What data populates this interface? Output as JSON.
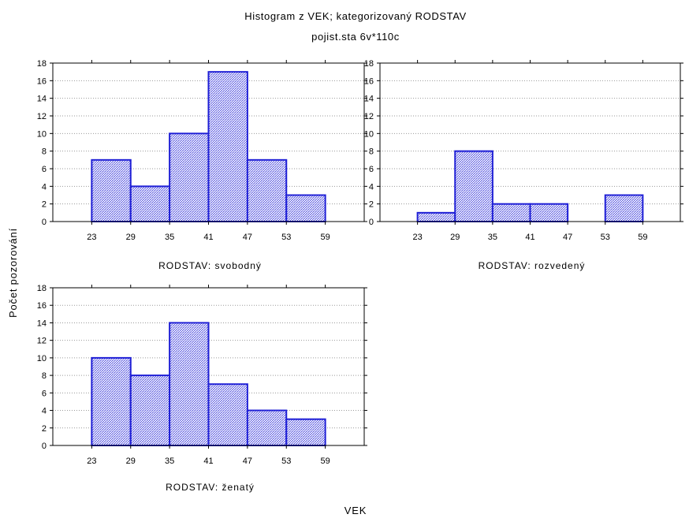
{
  "chart_data": {
    "type": "bar",
    "title": "Histogram z VEK; kategorizovaný RODSTAV",
    "subtitle": "pojist.sta 6v*110c",
    "xlabel": "VEK",
    "ylabel": "Počet pozorování",
    "ylim": [
      0,
      18
    ],
    "yticks": [
      0,
      2,
      4,
      6,
      8,
      10,
      12,
      14,
      16,
      18
    ],
    "xticks": [
      23,
      29,
      35,
      41,
      47,
      53,
      59
    ],
    "xlim": [
      17,
      65
    ],
    "bin_width": 6,
    "grid": true,
    "colors": {
      "bar_edge": "#1f1fd6",
      "bar_hatch": "#5555e0"
    },
    "panels": [
      {
        "label": "RODSTAV: svobodný",
        "bins": [
          {
            "start": 23,
            "end": 29,
            "count": 7
          },
          {
            "start": 29,
            "end": 35,
            "count": 4
          },
          {
            "start": 35,
            "end": 41,
            "count": 10
          },
          {
            "start": 41,
            "end": 47,
            "count": 17
          },
          {
            "start": 47,
            "end": 53,
            "count": 7
          },
          {
            "start": 53,
            "end": 59,
            "count": 3
          }
        ]
      },
      {
        "label": "RODSTAV: rozvedený",
        "bins": [
          {
            "start": 23,
            "end": 29,
            "count": 1
          },
          {
            "start": 29,
            "end": 35,
            "count": 8
          },
          {
            "start": 35,
            "end": 41,
            "count": 2
          },
          {
            "start": 41,
            "end": 47,
            "count": 2
          },
          {
            "start": 47,
            "end": 53,
            "count": 0
          },
          {
            "start": 53,
            "end": 59,
            "count": 3
          }
        ]
      },
      {
        "label": "RODSTAV: ženatý",
        "bins": [
          {
            "start": 23,
            "end": 29,
            "count": 10
          },
          {
            "start": 29,
            "end": 35,
            "count": 8
          },
          {
            "start": 35,
            "end": 41,
            "count": 14
          },
          {
            "start": 41,
            "end": 47,
            "count": 7
          },
          {
            "start": 47,
            "end": 53,
            "count": 4
          },
          {
            "start": 53,
            "end": 59,
            "count": 3
          }
        ]
      }
    ]
  }
}
